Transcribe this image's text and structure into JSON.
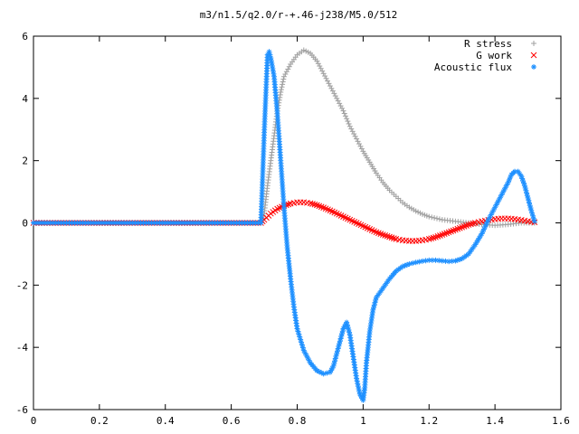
{
  "chart_data": {
    "type": "scatter",
    "title": "m3/n1.5/q2.0/r-+.46-j238/M5.0/512",
    "xlabel": "",
    "ylabel": "",
    "xlim": [
      0,
      1.6
    ],
    "ylim": [
      -6,
      6
    ],
    "x_ticks": [
      "0",
      "0.2",
      "0.4",
      "0.6",
      "0.8",
      "1",
      "1.2",
      "1.4",
      "1.6"
    ],
    "y_ticks": [
      "6",
      "4",
      "2",
      "0",
      "-2",
      "-4",
      "-6"
    ],
    "grid": false,
    "legend_position": "top-right",
    "series": [
      {
        "name": "R stress",
        "marker": "+",
        "color": "#a0a0a0",
        "points": [
          [
            0.0,
            0.0
          ],
          [
            0.1,
            0.0
          ],
          [
            0.2,
            0.0
          ],
          [
            0.3,
            0.0
          ],
          [
            0.4,
            0.0
          ],
          [
            0.5,
            0.0
          ],
          [
            0.6,
            0.0
          ],
          [
            0.69,
            0.0
          ],
          [
            0.7,
            0.3
          ],
          [
            0.71,
            1.2
          ],
          [
            0.72,
            2.0
          ],
          [
            0.73,
            2.8
          ],
          [
            0.74,
            3.6
          ],
          [
            0.75,
            4.2
          ],
          [
            0.76,
            4.7
          ],
          [
            0.78,
            5.1
          ],
          [
            0.8,
            5.4
          ],
          [
            0.82,
            5.55
          ],
          [
            0.84,
            5.45
          ],
          [
            0.86,
            5.2
          ],
          [
            0.88,
            4.8
          ],
          [
            0.9,
            4.4
          ],
          [
            0.92,
            4.0
          ],
          [
            0.94,
            3.6
          ],
          [
            0.96,
            3.1
          ],
          [
            0.98,
            2.7
          ],
          [
            1.0,
            2.3
          ],
          [
            1.02,
            1.95
          ],
          [
            1.04,
            1.6
          ],
          [
            1.06,
            1.3
          ],
          [
            1.08,
            1.05
          ],
          [
            1.1,
            0.85
          ],
          [
            1.12,
            0.65
          ],
          [
            1.14,
            0.5
          ],
          [
            1.16,
            0.38
          ],
          [
            1.18,
            0.28
          ],
          [
            1.2,
            0.2
          ],
          [
            1.24,
            0.1
          ],
          [
            1.28,
            0.05
          ],
          [
            1.32,
            0.0
          ],
          [
            1.36,
            -0.05
          ],
          [
            1.4,
            -0.08
          ],
          [
            1.44,
            -0.05
          ],
          [
            1.48,
            0.0
          ],
          [
            1.52,
            0.0
          ]
        ]
      },
      {
        "name": "G work",
        "marker": "x",
        "color": "#ff0000",
        "points": [
          [
            0.0,
            0.0
          ],
          [
            0.1,
            0.0
          ],
          [
            0.2,
            0.0
          ],
          [
            0.3,
            0.0
          ],
          [
            0.4,
            0.0
          ],
          [
            0.5,
            0.0
          ],
          [
            0.6,
            0.0
          ],
          [
            0.69,
            0.0
          ],
          [
            0.7,
            0.1
          ],
          [
            0.72,
            0.3
          ],
          [
            0.74,
            0.45
          ],
          [
            0.76,
            0.55
          ],
          [
            0.78,
            0.62
          ],
          [
            0.8,
            0.66
          ],
          [
            0.82,
            0.66
          ],
          [
            0.84,
            0.63
          ],
          [
            0.86,
            0.57
          ],
          [
            0.88,
            0.49
          ],
          [
            0.9,
            0.4
          ],
          [
            0.92,
            0.3
          ],
          [
            0.94,
            0.2
          ],
          [
            0.96,
            0.1
          ],
          [
            0.98,
            0.0
          ],
          [
            1.0,
            -0.1
          ],
          [
            1.02,
            -0.2
          ],
          [
            1.04,
            -0.3
          ],
          [
            1.06,
            -0.38
          ],
          [
            1.08,
            -0.45
          ],
          [
            1.1,
            -0.52
          ],
          [
            1.12,
            -0.56
          ],
          [
            1.14,
            -0.58
          ],
          [
            1.16,
            -0.58
          ],
          [
            1.18,
            -0.56
          ],
          [
            1.2,
            -0.52
          ],
          [
            1.22,
            -0.46
          ],
          [
            1.24,
            -0.38
          ],
          [
            1.26,
            -0.3
          ],
          [
            1.28,
            -0.22
          ],
          [
            1.3,
            -0.14
          ],
          [
            1.32,
            -0.06
          ],
          [
            1.34,
            0.0
          ],
          [
            1.36,
            0.05
          ],
          [
            1.38,
            0.09
          ],
          [
            1.4,
            0.12
          ],
          [
            1.42,
            0.14
          ],
          [
            1.44,
            0.14
          ],
          [
            1.46,
            0.12
          ],
          [
            1.48,
            0.09
          ],
          [
            1.5,
            0.05
          ],
          [
            1.52,
            0.02
          ]
        ]
      },
      {
        "name": "Acoustic flux",
        "marker": "*",
        "color": "#1e90ff",
        "points": [
          [
            0.0,
            0.0
          ],
          [
            0.1,
            0.0
          ],
          [
            0.2,
            0.0
          ],
          [
            0.3,
            0.0
          ],
          [
            0.4,
            0.0
          ],
          [
            0.5,
            0.0
          ],
          [
            0.6,
            0.0
          ],
          [
            0.69,
            0.0
          ],
          [
            0.7,
            2.9
          ],
          [
            0.71,
            5.4
          ],
          [
            0.715,
            5.5
          ],
          [
            0.72,
            5.3
          ],
          [
            0.73,
            4.7
          ],
          [
            0.74,
            3.5
          ],
          [
            0.75,
            2.0
          ],
          [
            0.76,
            0.5
          ],
          [
            0.77,
            -0.8
          ],
          [
            0.78,
            -1.8
          ],
          [
            0.79,
            -2.7
          ],
          [
            0.8,
            -3.4
          ],
          [
            0.82,
            -4.1
          ],
          [
            0.84,
            -4.5
          ],
          [
            0.86,
            -4.75
          ],
          [
            0.88,
            -4.85
          ],
          [
            0.9,
            -4.8
          ],
          [
            0.91,
            -4.6
          ],
          [
            0.92,
            -4.2
          ],
          [
            0.93,
            -3.8
          ],
          [
            0.94,
            -3.4
          ],
          [
            0.95,
            -3.2
          ],
          [
            0.96,
            -3.6
          ],
          [
            0.97,
            -4.3
          ],
          [
            0.98,
            -5.0
          ],
          [
            0.99,
            -5.5
          ],
          [
            1.0,
            -5.7
          ],
          [
            1.005,
            -5.3
          ],
          [
            1.01,
            -4.5
          ],
          [
            1.02,
            -3.5
          ],
          [
            1.03,
            -2.8
          ],
          [
            1.04,
            -2.4
          ],
          [
            1.06,
            -2.1
          ],
          [
            1.08,
            -1.8
          ],
          [
            1.1,
            -1.55
          ],
          [
            1.12,
            -1.4
          ],
          [
            1.14,
            -1.32
          ],
          [
            1.16,
            -1.27
          ],
          [
            1.18,
            -1.23
          ],
          [
            1.2,
            -1.2
          ],
          [
            1.22,
            -1.2
          ],
          [
            1.24,
            -1.22
          ],
          [
            1.26,
            -1.24
          ],
          [
            1.28,
            -1.22
          ],
          [
            1.3,
            -1.15
          ],
          [
            1.32,
            -1.0
          ],
          [
            1.34,
            -0.7
          ],
          [
            1.36,
            -0.35
          ],
          [
            1.38,
            0.1
          ],
          [
            1.4,
            0.5
          ],
          [
            1.42,
            0.9
          ],
          [
            1.44,
            1.3
          ],
          [
            1.45,
            1.55
          ],
          [
            1.46,
            1.65
          ],
          [
            1.47,
            1.65
          ],
          [
            1.48,
            1.5
          ],
          [
            1.49,
            1.2
          ],
          [
            1.5,
            0.8
          ],
          [
            1.51,
            0.4
          ],
          [
            1.52,
            0.05
          ]
        ]
      }
    ]
  }
}
